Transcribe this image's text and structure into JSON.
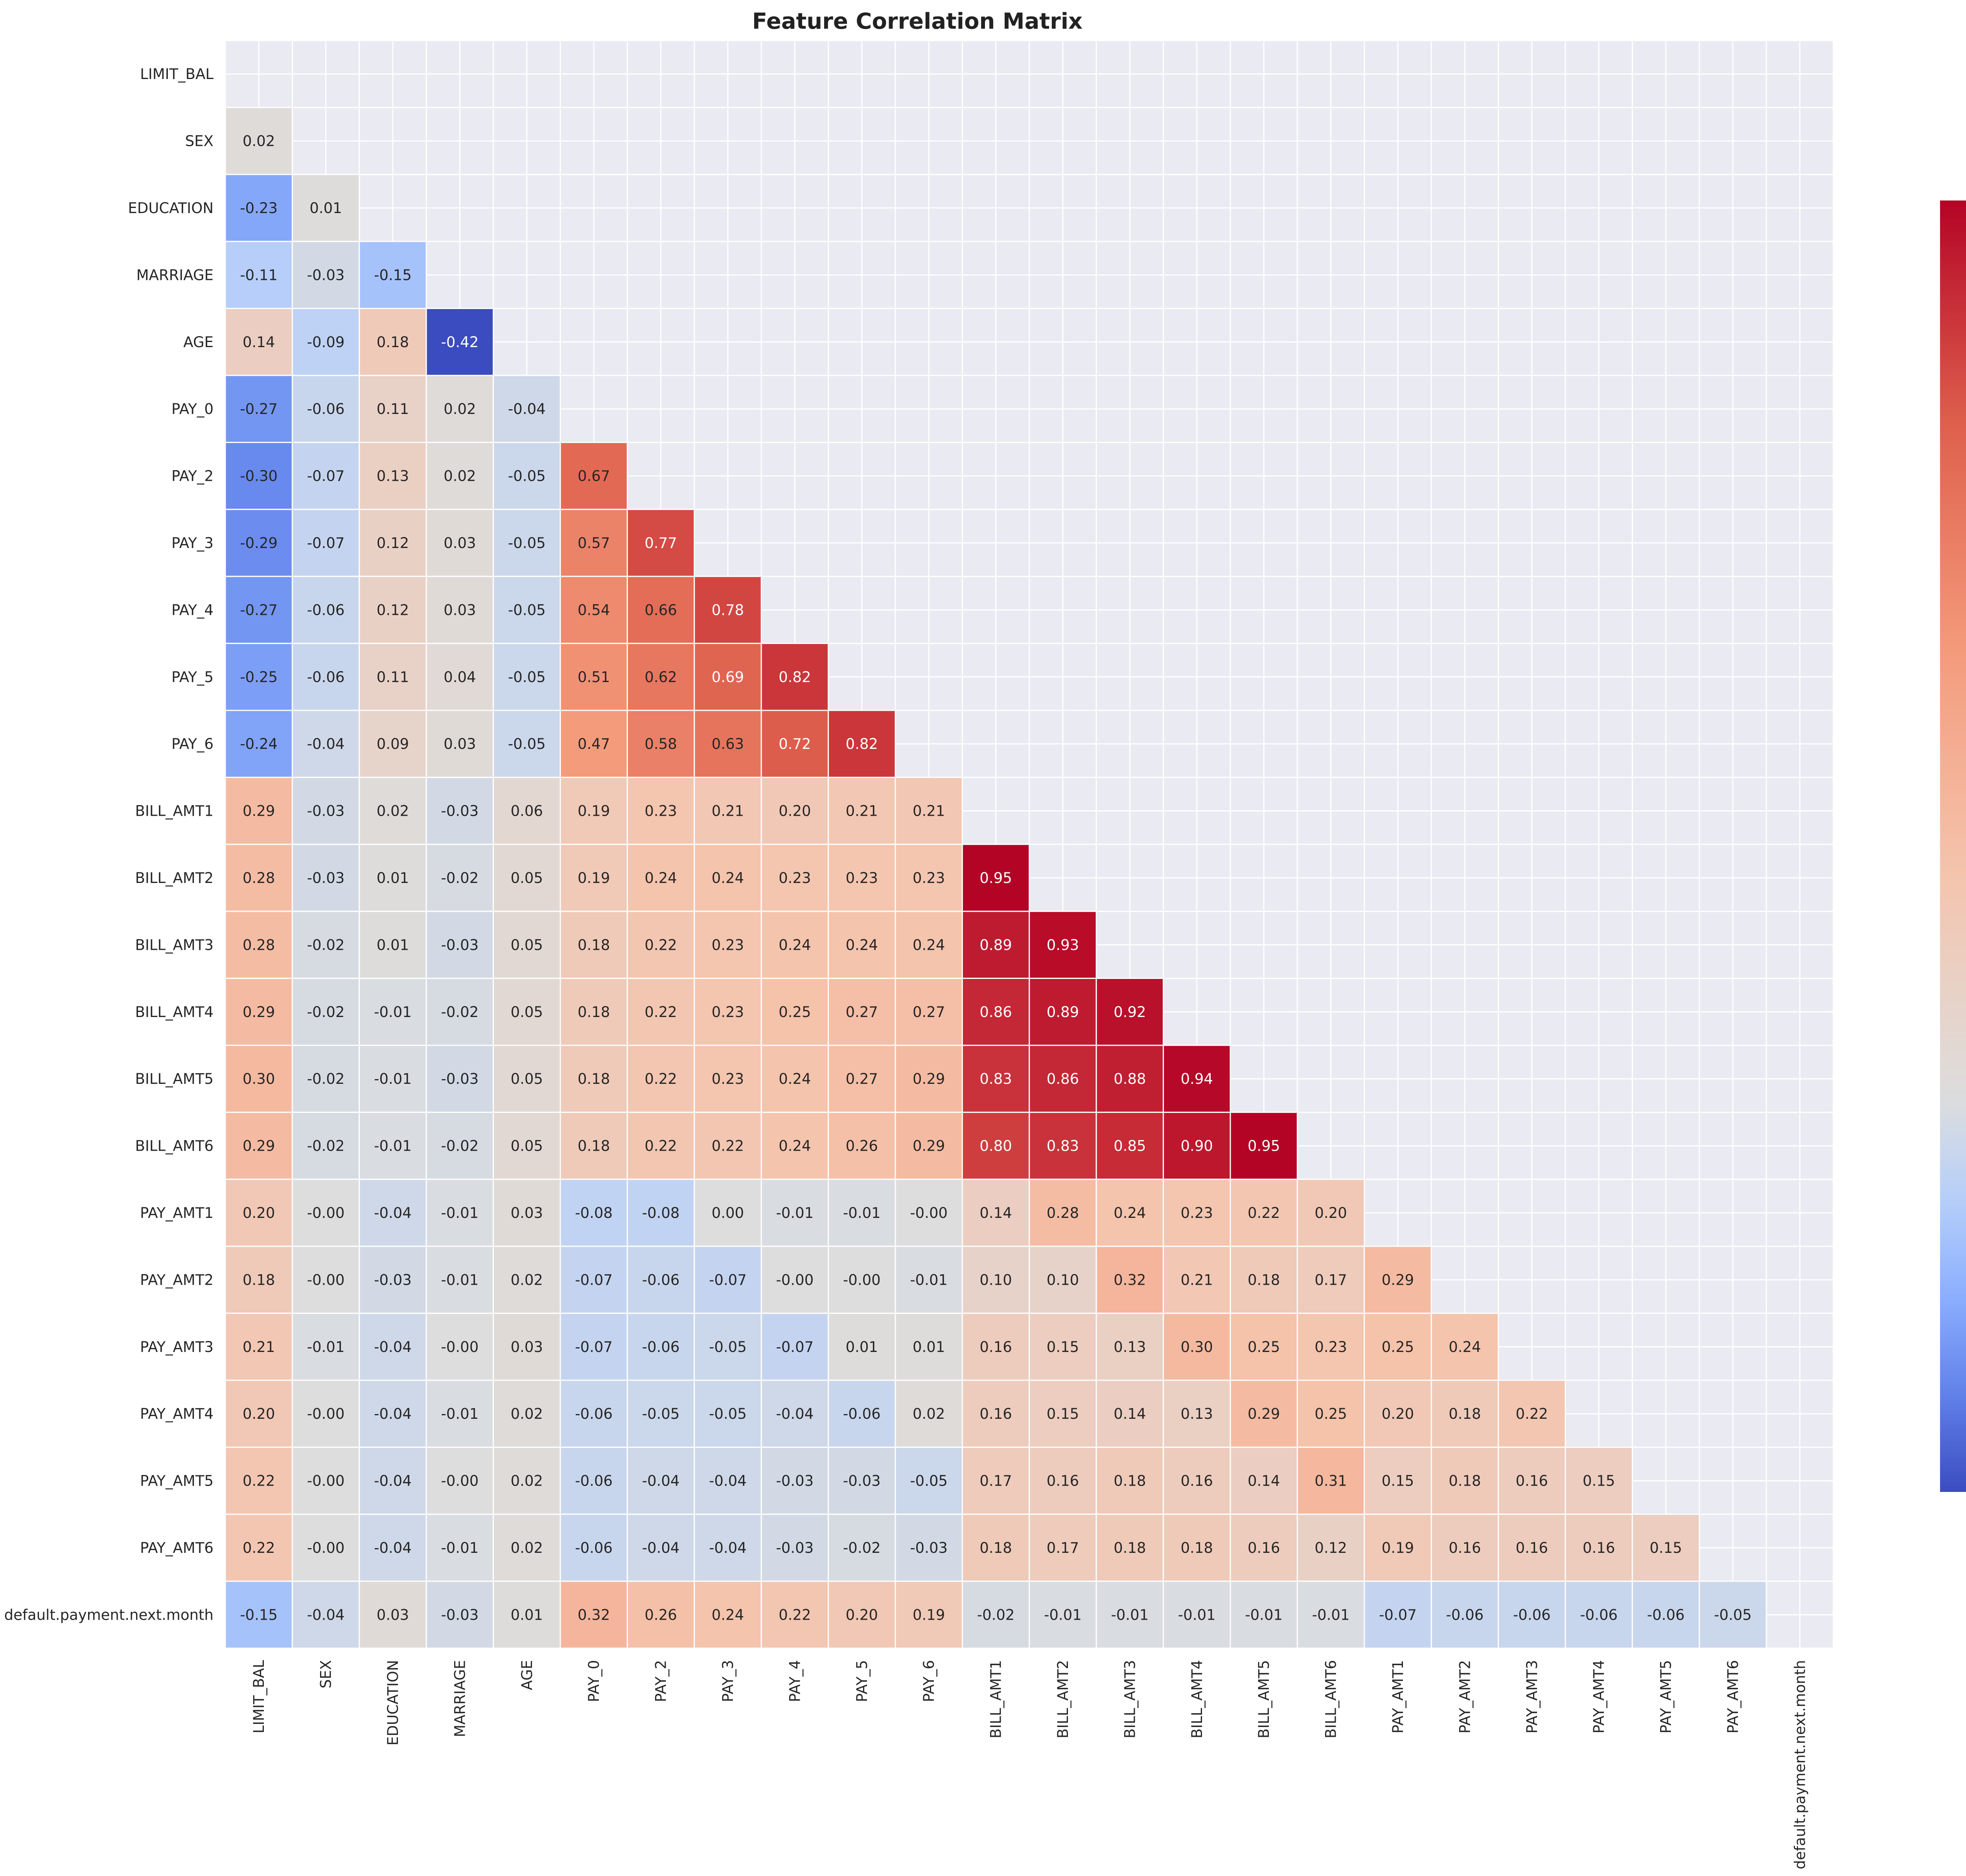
{
  "chart_data": {
    "type": "heatmap",
    "title": "Feature Correlation Matrix",
    "xlabel": "",
    "ylabel": "",
    "labels": [
      "LIMIT_BAL",
      "SEX",
      "EDUCATION",
      "MARRIAGE",
      "AGE",
      "PAY_0",
      "PAY_2",
      "PAY_3",
      "PAY_4",
      "PAY_5",
      "PAY_6",
      "BILL_AMT1",
      "BILL_AMT2",
      "BILL_AMT3",
      "BILL_AMT4",
      "BILL_AMT5",
      "BILL_AMT6",
      "PAY_AMT1",
      "PAY_AMT2",
      "PAY_AMT3",
      "PAY_AMT4",
      "PAY_AMT5",
      "PAY_AMT6",
      "default.payment.next.month"
    ],
    "mask": "upper-triangle-including-diagonal",
    "lower_triangle_values": [
      [],
      [
        "0.02"
      ],
      [
        "-0.23",
        "0.01"
      ],
      [
        "-0.11",
        "-0.03",
        "-0.15"
      ],
      [
        "0.14",
        "-0.09",
        "0.18",
        "-0.42"
      ],
      [
        "-0.27",
        "-0.06",
        "0.11",
        "0.02",
        "-0.04"
      ],
      [
        "-0.30",
        "-0.07",
        "0.13",
        "0.02",
        "-0.05",
        "0.67"
      ],
      [
        "-0.29",
        "-0.07",
        "0.12",
        "0.03",
        "-0.05",
        "0.57",
        "0.77"
      ],
      [
        "-0.27",
        "-0.06",
        "0.12",
        "0.03",
        "-0.05",
        "0.54",
        "0.66",
        "0.78"
      ],
      [
        "-0.25",
        "-0.06",
        "0.11",
        "0.04",
        "-0.05",
        "0.51",
        "0.62",
        "0.69",
        "0.82"
      ],
      [
        "-0.24",
        "-0.04",
        "0.09",
        "0.03",
        "-0.05",
        "0.47",
        "0.58",
        "0.63",
        "0.72",
        "0.82"
      ],
      [
        "0.29",
        "-0.03",
        "0.02",
        "-0.03",
        "0.06",
        "0.19",
        "0.23",
        "0.21",
        "0.20",
        "0.21",
        "0.21"
      ],
      [
        "0.28",
        "-0.03",
        "0.01",
        "-0.02",
        "0.05",
        "0.19",
        "0.24",
        "0.24",
        "0.23",
        "0.23",
        "0.23",
        "0.95"
      ],
      [
        "0.28",
        "-0.02",
        "0.01",
        "-0.03",
        "0.05",
        "0.18",
        "0.22",
        "0.23",
        "0.24",
        "0.24",
        "0.24",
        "0.89",
        "0.93"
      ],
      [
        "0.29",
        "-0.02",
        "-0.01",
        "-0.02",
        "0.05",
        "0.18",
        "0.22",
        "0.23",
        "0.25",
        "0.27",
        "0.27",
        "0.86",
        "0.89",
        "0.92"
      ],
      [
        "0.30",
        "-0.02",
        "-0.01",
        "-0.03",
        "0.05",
        "0.18",
        "0.22",
        "0.23",
        "0.24",
        "0.27",
        "0.29",
        "0.83",
        "0.86",
        "0.88",
        "0.94"
      ],
      [
        "0.29",
        "-0.02",
        "-0.01",
        "-0.02",
        "0.05",
        "0.18",
        "0.22",
        "0.22",
        "0.24",
        "0.26",
        "0.29",
        "0.80",
        "0.83",
        "0.85",
        "0.90",
        "0.95"
      ],
      [
        "0.20",
        "-0.00",
        "-0.04",
        "-0.01",
        "0.03",
        "-0.08",
        "-0.08",
        "0.00",
        "-0.01",
        "-0.01",
        "-0.00",
        "0.14",
        "0.28",
        "0.24",
        "0.23",
        "0.22",
        "0.20"
      ],
      [
        "0.18",
        "-0.00",
        "-0.03",
        "-0.01",
        "0.02",
        "-0.07",
        "-0.06",
        "-0.07",
        "-0.00",
        "-0.00",
        "-0.01",
        "0.10",
        "0.10",
        "0.32",
        "0.21",
        "0.18",
        "0.17",
        "0.29"
      ],
      [
        "0.21",
        "-0.01",
        "-0.04",
        "-0.00",
        "0.03",
        "-0.07",
        "-0.06",
        "-0.05",
        "-0.07",
        "0.01",
        "0.01",
        "0.16",
        "0.15",
        "0.13",
        "0.30",
        "0.25",
        "0.23",
        "0.25",
        "0.24"
      ],
      [
        "0.20",
        "-0.00",
        "-0.04",
        "-0.01",
        "0.02",
        "-0.06",
        "-0.05",
        "-0.05",
        "-0.04",
        "-0.06",
        "0.02",
        "0.16",
        "0.15",
        "0.14",
        "0.13",
        "0.29",
        "0.25",
        "0.20",
        "0.18",
        "0.22"
      ],
      [
        "0.22",
        "-0.00",
        "-0.04",
        "-0.00",
        "0.02",
        "-0.06",
        "-0.04",
        "-0.04",
        "-0.03",
        "-0.03",
        "-0.05",
        "0.17",
        "0.16",
        "0.18",
        "0.16",
        "0.14",
        "0.31",
        "0.15",
        "0.18",
        "0.16",
        "0.15"
      ],
      [
        "0.22",
        "-0.00",
        "-0.04",
        "-0.01",
        "0.02",
        "-0.06",
        "-0.04",
        "-0.04",
        "-0.03",
        "-0.02",
        "-0.03",
        "0.18",
        "0.17",
        "0.18",
        "0.18",
        "0.16",
        "0.12",
        "0.19",
        "0.16",
        "0.16",
        "0.16",
        "0.15"
      ],
      [
        "-0.15",
        "-0.04",
        "0.03",
        "-0.03",
        "0.01",
        "0.32",
        "0.26",
        "0.24",
        "0.22",
        "0.20",
        "0.19",
        "-0.02",
        "-0.01",
        "-0.01",
        "-0.01",
        "-0.01",
        "-0.01",
        "-0.07",
        "-0.06",
        "-0.06",
        "-0.06",
        "-0.06",
        "-0.05"
      ]
    ],
    "colorscale": "coolwarm",
    "color_range": [
      -0.42,
      0.95
    ],
    "colorbar_ticks": [
      "0.8",
      "0.6",
      "0.4",
      "0.2",
      "0.0",
      "−0.2",
      "−0.4"
    ],
    "grid": true,
    "legend": "colorbar-right"
  }
}
